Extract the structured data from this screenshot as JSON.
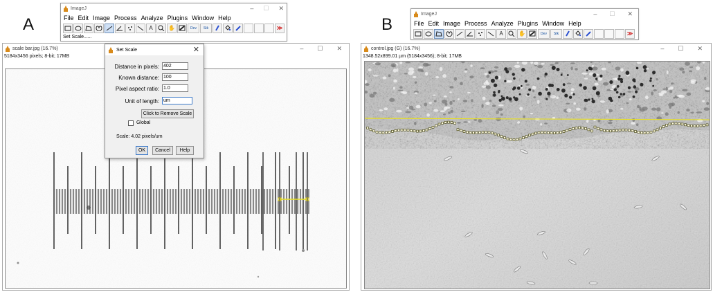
{
  "panels": {
    "a_label": "A",
    "b_label": "B"
  },
  "imagej_a": {
    "title": "ImageJ",
    "menu": [
      "File",
      "Edit",
      "Image",
      "Process",
      "Analyze",
      "Plugins",
      "Window",
      "Help"
    ],
    "status": "Set Scale......",
    "dev_label": "Dev",
    "stk_label": "Stk",
    "more_label": "≫"
  },
  "imagej_b": {
    "title": "ImageJ",
    "menu": [
      "File",
      "Edit",
      "Image",
      "Process",
      "Analyze",
      "Plugins",
      "Window",
      "Help"
    ],
    "dev_label": "Dev",
    "stk_label": "Stk",
    "more_label": "≫"
  },
  "scale_window": {
    "title": "scale bar.jpg (16.7%)",
    "info": "5184x3456 pixels; 8-bit; 17MB"
  },
  "control_window": {
    "title": "control.jpg (G) (16.7%)",
    "info": "1348.52x899.01 µm (5184x3456); 8-bit; 17MB"
  },
  "set_scale": {
    "title": "Set Scale",
    "distance_label": "Distance in pixels:",
    "distance_value": "402",
    "known_label": "Known distance:",
    "known_value": "100",
    "aspect_label": "Pixel aspect ratio:",
    "aspect_value": "1.0",
    "unit_label": "Unit of length:",
    "unit_value": "um",
    "remove_button": "Click to Remove Scale",
    "global_label": "Global",
    "scale_text": "Scale: 4.02 pixels/um",
    "ok_button": "OK",
    "cancel_button": "Cancel",
    "help_button": "Help"
  },
  "window_controls": {
    "minimize": "–",
    "maximize": "☐",
    "close": "✕"
  },
  "icons": [
    "rectangle-tool-icon",
    "oval-tool-icon",
    "polygon-tool-icon",
    "freehand-tool-icon",
    "line-tool-icon",
    "angle-tool-icon",
    "point-tool-icon",
    "wand-tool-icon",
    "text-tool-icon",
    "zoom-tool-icon",
    "hand-tool-icon",
    "color-picker-icon",
    "brush-icon",
    "flood-fill-icon",
    "dropper-icon"
  ],
  "colors": {
    "selection_line": "#e8e020",
    "accent": "#3a78c8"
  }
}
